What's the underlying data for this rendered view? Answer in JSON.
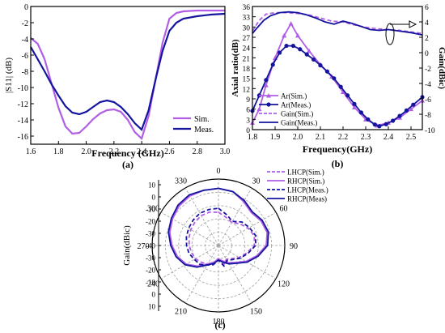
{
  "colors": {
    "sim": "#b05ee6",
    "meas": "#14149e",
    "axis": "#000000",
    "grid": "#9a9a9a"
  },
  "chart_data": [
    {
      "panel_label": "(a)",
      "type": "line",
      "xlabel": "Frequency (GHz)",
      "ylabel": "|S11| (dB)",
      "xlim": [
        1.6,
        3.0
      ],
      "ylim": [
        -17,
        0
      ],
      "xticks": [
        "1.6",
        "1.8",
        "2.0",
        "2.2",
        "2.4",
        "2.6",
        "2.8",
        "3.0"
      ],
      "yticks": [
        "-16",
        "-14",
        "-12",
        "-10",
        "-8",
        "-6",
        "-4",
        "-2",
        "0"
      ],
      "xtick_values": [
        1.6,
        1.8,
        2.0,
        2.2,
        2.4,
        2.6,
        2.8,
        3.0
      ],
      "ytick_values": [
        -16,
        -14,
        -12,
        -10,
        -8,
        -6,
        -4,
        -2,
        0
      ],
      "legend_position": "bottom-right",
      "series": [
        {
          "name": "Sim.",
          "color_key": "sim",
          "style": "solid",
          "x": [
            1.6,
            1.65,
            1.7,
            1.75,
            1.8,
            1.85,
            1.9,
            1.95,
            2.0,
            2.05,
            2.1,
            2.15,
            2.2,
            2.25,
            2.3,
            2.35,
            2.4,
            2.45,
            2.5,
            2.55,
            2.6,
            2.65,
            2.7,
            2.8,
            2.9,
            3.0
          ],
          "y": [
            -3.9,
            -4.6,
            -6.5,
            -9.5,
            -12.5,
            -14.8,
            -15.7,
            -15.6,
            -14.8,
            -13.9,
            -13.2,
            -12.8,
            -12.7,
            -13.0,
            -14.0,
            -15.5,
            -16.3,
            -13.5,
            -9.0,
            -4.5,
            -1.5,
            -0.8,
            -0.6,
            -0.5,
            -0.5,
            -0.5
          ]
        },
        {
          "name": "Meas.",
          "color_key": "meas",
          "style": "solid",
          "x": [
            1.6,
            1.65,
            1.7,
            1.75,
            1.8,
            1.85,
            1.9,
            1.95,
            2.0,
            2.05,
            2.1,
            2.15,
            2.2,
            2.25,
            2.3,
            2.35,
            2.4,
            2.45,
            2.5,
            2.55,
            2.6,
            2.65,
            2.7,
            2.8,
            2.9,
            3.0
          ],
          "y": [
            -5.0,
            -6.5,
            -8.0,
            -9.6,
            -11.0,
            -12.3,
            -13.1,
            -13.3,
            -13.0,
            -12.4,
            -11.8,
            -11.6,
            -11.8,
            -12.4,
            -13.3,
            -14.4,
            -15.2,
            -12.8,
            -9.0,
            -5.5,
            -3.0,
            -2.0,
            -1.5,
            -1.2,
            -1.0,
            -0.9
          ]
        }
      ]
    },
    {
      "panel_label": "(b)",
      "type": "line",
      "xlabel": "Frequency(GHz)",
      "ylabel": "Axial ratio(dB)",
      "ylabel_right": "Gain(dBic)",
      "xlim": [
        1.8,
        2.55
      ],
      "ylim": [
        0,
        36
      ],
      "ylim_right": [
        -10,
        6
      ],
      "xticks": [
        "1.8",
        "1.9",
        "2.0",
        "2.1",
        "2.2",
        "2.3",
        "2.4",
        "2.5"
      ],
      "xtick_values": [
        1.8,
        1.9,
        2.0,
        2.1,
        2.2,
        2.3,
        2.4,
        2.5
      ],
      "yticks": [
        "0",
        "3",
        "6",
        "9",
        "12",
        "15",
        "18",
        "21",
        "24",
        "27",
        "30",
        "33",
        "36"
      ],
      "ytick_values": [
        0,
        3,
        6,
        9,
        12,
        15,
        18,
        21,
        24,
        27,
        30,
        33,
        36
      ],
      "yticks_right": [
        "-10",
        "-8",
        "-6",
        "-4",
        "-2",
        "0",
        "2",
        "4",
        "6"
      ],
      "ytick_values_right": [
        -10,
        -8,
        -6,
        -4,
        -2,
        0,
        2,
        4,
        6
      ],
      "legend_position": "bottom-left",
      "series": [
        {
          "name": "Ar(Sim.)",
          "color_key": "sim",
          "style": "solid",
          "marker": "triangle",
          "axis": "left",
          "x": [
            1.8,
            1.83,
            1.86,
            1.9,
            1.94,
            1.97,
            2.0,
            2.05,
            2.1,
            2.15,
            2.2,
            2.25,
            2.3,
            2.35,
            2.4,
            2.45,
            2.5,
            2.55
          ],
          "y": [
            2.0,
            6.0,
            13.0,
            21.0,
            27.5,
            31.0,
            27.5,
            23.0,
            19.0,
            15.5,
            11.0,
            6.5,
            3.0,
            1.2,
            2.0,
            3.5,
            6.0,
            8.5
          ]
        },
        {
          "name": "Ar(Meas.)",
          "color_key": "meas",
          "style": "solid",
          "marker": "circle",
          "axis": "left",
          "x": [
            1.8,
            1.83,
            1.86,
            1.89,
            1.92,
            1.95,
            1.98,
            2.01,
            2.04,
            2.07,
            2.1,
            2.13,
            2.16,
            2.19,
            2.22,
            2.25,
            2.28,
            2.31,
            2.34,
            2.36,
            2.39,
            2.42,
            2.45,
            2.48,
            2.51,
            2.55
          ],
          "y": [
            5.5,
            10.0,
            14.5,
            19.0,
            22.5,
            24.5,
            24.5,
            23.5,
            22.0,
            20.5,
            18.8,
            17.0,
            15.0,
            12.5,
            10.0,
            7.5,
            5.0,
            3.0,
            1.5,
            1.0,
            1.6,
            2.6,
            4.0,
            5.6,
            7.3,
            9.5
          ]
        },
        {
          "name": "Gain(Sim.)",
          "color_key": "sim",
          "style": "dashed",
          "axis": "right",
          "x": [
            1.8,
            1.83,
            1.86,
            1.9,
            1.95,
            2.0,
            2.05,
            2.1,
            2.15,
            2.2,
            2.25,
            2.3,
            2.35,
            2.4,
            2.45,
            2.5,
            2.55
          ],
          "y": [
            2.8,
            4.2,
            5.0,
            5.2,
            5.2,
            5.1,
            4.9,
            4.5,
            4.1,
            4.0,
            3.6,
            3.3,
            3.1,
            3.0,
            2.9,
            2.7,
            2.5
          ]
        },
        {
          "name": "Gain(Meas.)",
          "color_key": "meas",
          "style": "solid",
          "axis": "right",
          "x": [
            1.8,
            1.82,
            1.85,
            1.88,
            1.92,
            1.96,
            2.0,
            2.04,
            2.08,
            2.12,
            2.16,
            2.2,
            2.24,
            2.28,
            2.32,
            2.36,
            2.4,
            2.45,
            2.5,
            2.55
          ],
          "y": [
            2.5,
            3.2,
            4.2,
            4.8,
            5.2,
            5.3,
            5.2,
            4.9,
            4.5,
            4.0,
            3.7,
            4.1,
            3.8,
            3.4,
            3.0,
            2.9,
            3.0,
            2.8,
            2.6,
            2.3
          ]
        }
      ]
    },
    {
      "panel_label": "(c)",
      "type": "polar",
      "ylabel": "Gain(dBic)",
      "rlim": [
        -40,
        10
      ],
      "rticks": [
        "10",
        "0",
        "-10",
        "-20",
        "-30",
        "-40",
        "-30",
        "-20",
        "-10",
        "0",
        "10"
      ],
      "angle_ticks": [
        "0",
        "30",
        "60",
        "90",
        "120",
        "150",
        "180",
        "210",
        "240",
        "270",
        "300",
        "330"
      ],
      "legend_position": "top-right",
      "series": [
        {
          "name": "LHCP(Sim.)",
          "color_key": "sim",
          "style": "dashed",
          "theta": [
            0,
            15,
            30,
            45,
            60,
            75,
            90,
            105,
            120,
            135,
            150,
            165,
            180,
            195,
            210,
            225,
            240,
            255,
            270,
            285,
            300,
            315,
            330,
            345,
            360
          ],
          "r": [
            -15,
            -18,
            -20,
            -17,
            -14,
            -12,
            -13,
            -18,
            -22,
            -26,
            -28,
            -25,
            -30,
            -26,
            -24,
            -22,
            -20,
            -19,
            -18,
            -17,
            -16,
            -15,
            -14,
            -14,
            -15
          ]
        },
        {
          "name": "RHCP(Sim.)",
          "color_key": "sim",
          "style": "solid",
          "theta": [
            0,
            15,
            30,
            45,
            60,
            75,
            90,
            105,
            120,
            135,
            150,
            165,
            180,
            195,
            210,
            225,
            240,
            255,
            270,
            285,
            300,
            315,
            330,
            345,
            360
          ],
          "r": [
            3,
            2,
            -2,
            -5,
            -3,
            -2,
            -4,
            -10,
            -16,
            -22,
            -25,
            -28,
            -30,
            -27,
            -24,
            -18,
            -12,
            -8,
            -5,
            -2,
            0,
            2,
            3,
            3,
            3
          ]
        },
        {
          "name": "LHCP(Meas.)",
          "color_key": "meas",
          "style": "dashed",
          "theta": [
            0,
            15,
            30,
            45,
            60,
            75,
            90,
            105,
            120,
            135,
            150,
            165,
            180,
            195,
            210,
            225,
            240,
            255,
            270,
            285,
            300,
            315,
            330,
            345,
            360
          ],
          "r": [
            -12,
            -16,
            -19,
            -15,
            -13,
            -11,
            -12,
            -17,
            -21,
            -25,
            -27,
            -24,
            -29,
            -25,
            -23,
            -20,
            -19,
            -17,
            -16,
            -15,
            -14,
            -13,
            -12,
            -12,
            -12
          ]
        },
        {
          "name": "RHCP(Meas)",
          "color_key": "meas",
          "style": "solid",
          "theta": [
            0,
            15,
            30,
            45,
            60,
            75,
            90,
            105,
            120,
            135,
            150,
            165,
            180,
            195,
            210,
            225,
            240,
            255,
            270,
            285,
            300,
            315,
            330,
            345,
            360
          ],
          "r": [
            3,
            2,
            -1,
            -4,
            -2,
            -1,
            -3,
            -9,
            -15,
            -21,
            -24,
            -27,
            -29,
            -26,
            -23,
            -17,
            -11,
            -7,
            -4,
            -1,
            1,
            3,
            4,
            3,
            3
          ]
        }
      ]
    }
  ]
}
